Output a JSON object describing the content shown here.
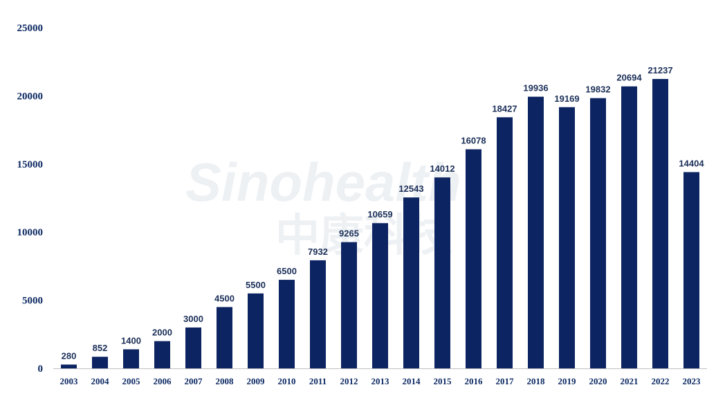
{
  "watermark": {
    "text_en": "Sinohealth",
    "text_cn": "中康科技"
  },
  "chart_data": {
    "type": "bar",
    "categories": [
      "2003",
      "2004",
      "2005",
      "2006",
      "2007",
      "2008",
      "2009",
      "2010",
      "2011",
      "2012",
      "2013",
      "2014",
      "2015",
      "2016",
      "2017",
      "2018",
      "2019",
      "2020",
      "2021",
      "2022",
      "2023"
    ],
    "values": [
      280,
      852,
      1400,
      2000,
      3000,
      4500,
      5500,
      6500,
      7932,
      9265,
      10659,
      12543,
      14012,
      16078,
      18427,
      19936,
      19169,
      19832,
      20694,
      21237,
      14404
    ],
    "yticks": [
      "0",
      "5000",
      "10000",
      "15000",
      "20000",
      "25000"
    ],
    "ylim": [
      0,
      25000
    ],
    "title": "",
    "xlabel": "",
    "ylabel": "",
    "grid": false,
    "legend": "none",
    "bar_color": "#0c2461",
    "axis_color": "#bfbfbf"
  }
}
